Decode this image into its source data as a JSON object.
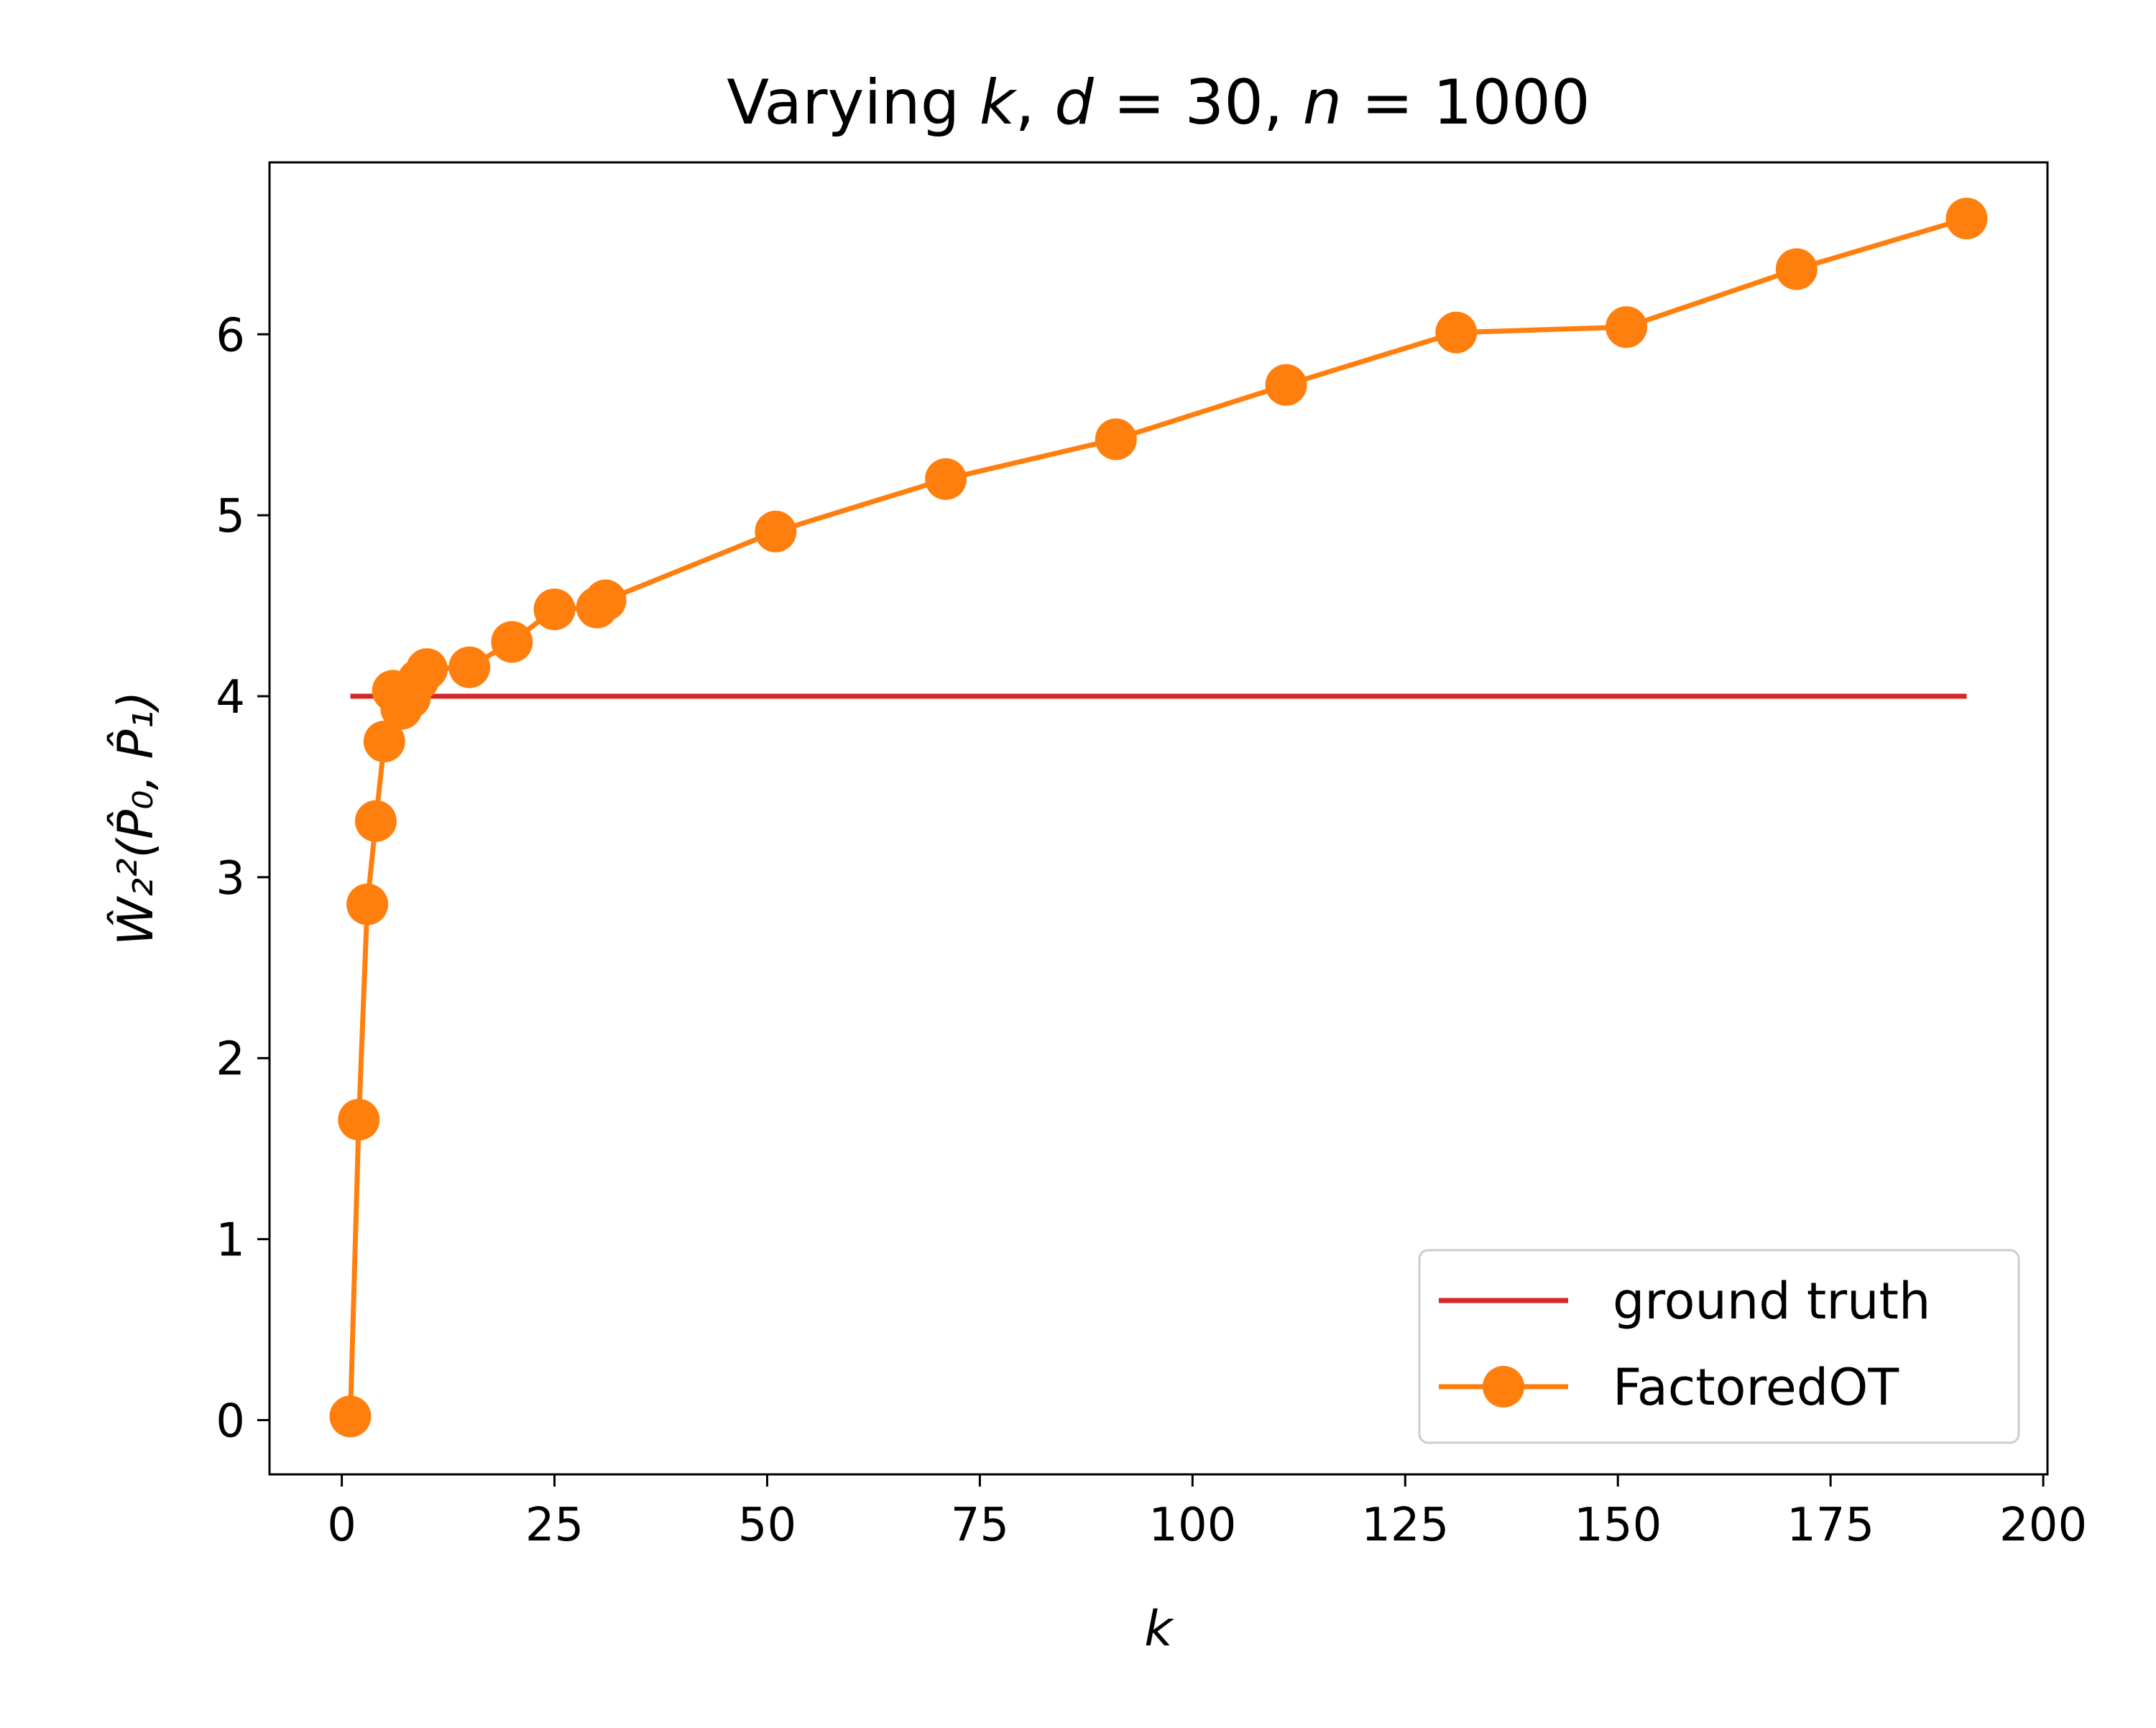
{
  "chart_data": {
    "type": "line",
    "title": "Varying k, d = 30, n = 1000",
    "title_parts": [
      {
        "text": "Varying ",
        "italic": false
      },
      {
        "text": "k",
        "italic": true
      },
      {
        "text": ", ",
        "italic": false
      },
      {
        "text": "d",
        "italic": true
      },
      {
        "text": " = 30, ",
        "italic": false
      },
      {
        "text": "n",
        "italic": true
      },
      {
        "text": " = 1000",
        "italic": false
      }
    ],
    "xlabel": "k",
    "ylabel": "Ŵ₂²(P̂₀, P̂₁)",
    "xlim": [
      -8.5,
      200.5
    ],
    "ylim": [
      -0.3,
      6.95
    ],
    "xticks": [
      0,
      25,
      50,
      75,
      100,
      125,
      150,
      175,
      200
    ],
    "xtick_labels": [
      "0",
      "25",
      "50",
      "75",
      "100",
      "125",
      "150",
      "175",
      "200"
    ],
    "yticks": [
      0,
      1,
      2,
      3,
      4,
      5,
      6
    ],
    "ytick_labels": [
      "0",
      "1",
      "2",
      "3",
      "4",
      "5",
      "6"
    ],
    "grid": false,
    "legend_position": "lower-right",
    "series": [
      {
        "name": "ground truth",
        "color": "#d62728",
        "marker": "none",
        "x": [
          1,
          191
        ],
        "y": [
          4.0,
          4.0
        ]
      },
      {
        "name": "FactoredOT",
        "color": "#ff7f0e",
        "marker": "circle",
        "x": [
          1,
          2,
          3,
          4,
          5,
          6,
          7,
          8,
          9,
          10,
          15,
          20,
          25,
          30,
          31,
          51,
          71,
          91,
          111,
          131,
          151,
          171,
          191
        ],
        "y": [
          0.02,
          1.66,
          2.85,
          3.31,
          3.75,
          4.03,
          3.93,
          3.99,
          4.09,
          4.15,
          4.16,
          4.3,
          4.48,
          4.49,
          4.53,
          4.91,
          5.2,
          5.42,
          5.72,
          6.01,
          6.04,
          6.36,
          6.64
        ]
      }
    ]
  }
}
